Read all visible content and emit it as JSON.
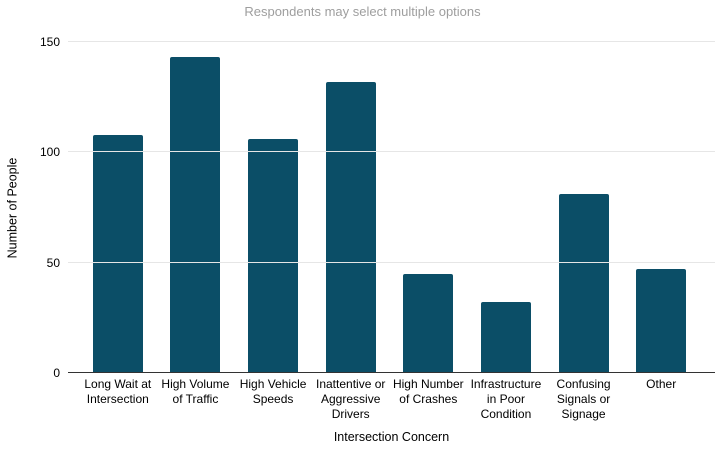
{
  "chart_data": {
    "type": "bar",
    "title": "Respondents may select multiple options",
    "xlabel": "Intersection Concern",
    "ylabel": "Number of People",
    "categories": [
      "Long Wait at Intersection",
      "High Volume of Traffic",
      "High Vehicle Speeds",
      "Inattentive or Aggressive Drivers",
      "High Number of Crashes",
      "Infrastructure in Poor Condition",
      "Confusing Signals or Signage",
      "Other"
    ],
    "values": [
      108,
      143,
      106,
      132,
      45,
      32,
      81,
      47
    ],
    "yticks": [
      0,
      50,
      100,
      150
    ],
    "ylim": [
      0,
      150
    ],
    "legend": "none",
    "grid": true,
    "colors": {
      "bar": "#0b4e67",
      "title_text": "#9e9e9e",
      "axis_text": "#000000",
      "gridline": "#e6e6e6",
      "axis_line": "#333333",
      "background": "#ffffff"
    }
  }
}
